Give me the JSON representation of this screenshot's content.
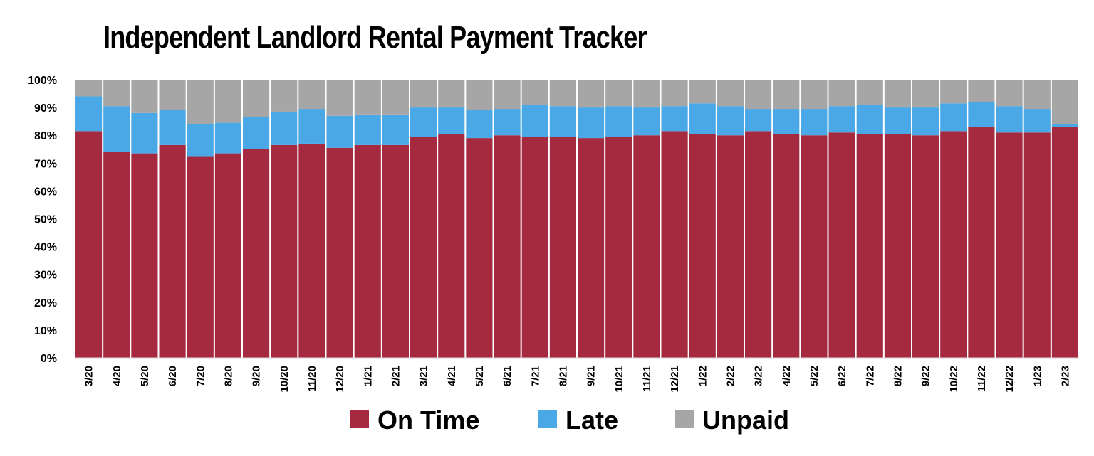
{
  "chart_data": {
    "type": "bar",
    "stacked": true,
    "normalized": true,
    "title": "Independent Landlord Rental Payment Tracker",
    "xlabel": "",
    "ylabel": "",
    "ylim": [
      0,
      100
    ],
    "y_ticks": [
      "0%",
      "10%",
      "20%",
      "30%",
      "40%",
      "50%",
      "60%",
      "70%",
      "80%",
      "90%",
      "100%"
    ],
    "grid": false,
    "legend_position": "bottom",
    "categories": [
      "3/20",
      "4/20",
      "5/20",
      "6/20",
      "7/20",
      "8/20",
      "9/20",
      "10/20",
      "11/20",
      "12/20",
      "1/21",
      "2/21",
      "3/21",
      "4/21",
      "5/21",
      "6/21",
      "7/21",
      "8/21",
      "9/21",
      "10/21",
      "11/21",
      "12/21",
      "1/22",
      "2/22",
      "3/22",
      "4/22",
      "5/22",
      "6/22",
      "7/22",
      "8/22",
      "9/22",
      "10/22",
      "11/22",
      "12/22",
      "1/23",
      "2/23"
    ],
    "series": [
      {
        "name": "On Time",
        "color": "#a52a3f",
        "values": [
          81.5,
          74,
          73.5,
          76.5,
          72.5,
          73.5,
          75,
          76.5,
          77,
          75.5,
          76.5,
          76.5,
          79.5,
          80.5,
          79,
          80,
          79.5,
          79.5,
          79,
          79.5,
          80,
          81.5,
          80.5,
          80,
          81.5,
          80.5,
          80,
          81,
          80.5,
          80.5,
          80,
          81.5,
          83,
          81,
          81,
          83
        ]
      },
      {
        "name": "Late",
        "color": "#4aa8e6",
        "values": [
          12.5,
          16.5,
          14.5,
          12.5,
          11.5,
          11,
          11.5,
          12,
          12.5,
          11.5,
          11,
          11,
          10.5,
          9.5,
          10,
          9.5,
          11.5,
          11,
          11,
          11,
          10,
          9,
          11,
          10.5,
          8,
          9,
          9.5,
          9.5,
          10.5,
          9.5,
          10,
          10,
          9,
          9.5,
          8.5,
          1
        ]
      },
      {
        "name": "Unpaid",
        "color": "#a6a6a6",
        "values": [
          6,
          9.5,
          12,
          11,
          16,
          15.5,
          13.5,
          11.5,
          10.5,
          13,
          12.5,
          12.5,
          10,
          10,
          11,
          10.5,
          9,
          9.5,
          10,
          9.5,
          10,
          9.5,
          8.5,
          9.5,
          10.5,
          10.5,
          10.5,
          9.5,
          9,
          10,
          10,
          8.5,
          8,
          9.5,
          10.5,
          16
        ]
      }
    ]
  }
}
